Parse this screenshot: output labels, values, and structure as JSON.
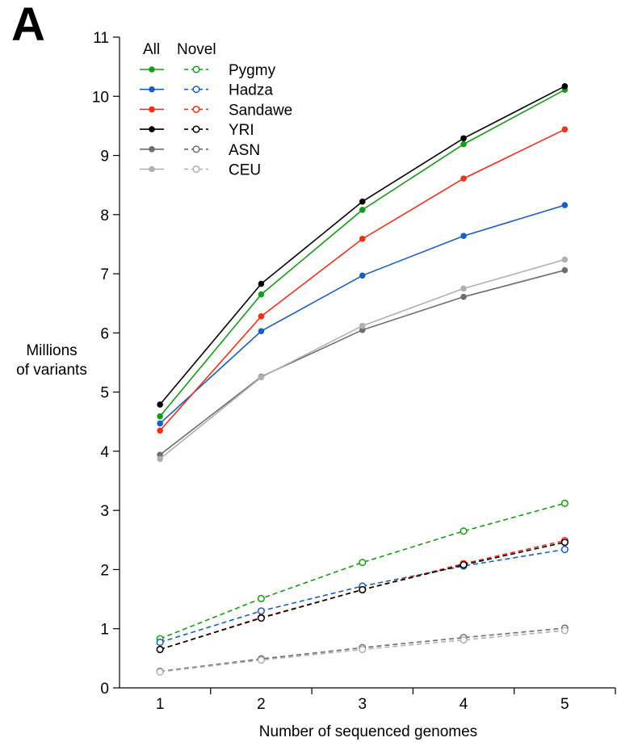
{
  "panel_label": "A",
  "chart_data": {
    "type": "line",
    "xlabel": "Number of sequenced genomes",
    "ylabel_lines": [
      "Millions",
      "of variants"
    ],
    "x": [
      1,
      2,
      3,
      4,
      5
    ],
    "xlim": [
      0.6,
      5.5
    ],
    "ylim": [
      0,
      11
    ],
    "x_ticks": [
      1,
      2,
      3,
      4,
      5
    ],
    "y_ticks": [
      0,
      1,
      2,
      3,
      4,
      5,
      6,
      7,
      8,
      9,
      10,
      11
    ],
    "grid": false,
    "legend": {
      "placement": "top-left",
      "headers": [
        "All",
        "Novel"
      ],
      "entries": [
        "Pygmy",
        "Hadza",
        "Sandawe",
        "YRI",
        "ASN",
        "CEU"
      ]
    },
    "series": [
      {
        "name": "Pygmy",
        "group": "All",
        "color": "#1a9a1a",
        "style": "solid",
        "marker": "filled",
        "values": [
          4.59,
          6.65,
          8.08,
          9.19,
          10.11
        ]
      },
      {
        "name": "Hadza",
        "group": "All",
        "color": "#1a5fbf",
        "style": "solid",
        "marker": "filled",
        "values": [
          4.47,
          6.03,
          6.97,
          7.64,
          8.16
        ]
      },
      {
        "name": "Sandawe",
        "group": "All",
        "color": "#f0301a",
        "style": "solid",
        "marker": "filled",
        "values": [
          4.35,
          6.28,
          7.59,
          8.61,
          9.44
        ]
      },
      {
        "name": "YRI",
        "group": "All",
        "color": "#000000",
        "style": "solid",
        "marker": "filled",
        "values": [
          4.79,
          6.83,
          8.22,
          9.29,
          10.17
        ]
      },
      {
        "name": "ASN",
        "group": "All",
        "color": "#6e6e6e",
        "style": "solid",
        "marker": "filled",
        "values": [
          3.94,
          5.26,
          6.05,
          6.61,
          7.06
        ]
      },
      {
        "name": "CEU",
        "group": "All",
        "color": "#b0b0b0",
        "style": "solid",
        "marker": "filled",
        "values": [
          3.87,
          5.25,
          6.12,
          6.75,
          7.24
        ]
      },
      {
        "name": "Pygmy",
        "group": "Novel",
        "color": "#1a9a1a",
        "style": "dashed",
        "marker": "open",
        "values": [
          0.83,
          1.51,
          2.12,
          2.65,
          3.12
        ]
      },
      {
        "name": "Hadza",
        "group": "Novel",
        "color": "#1a5fbf",
        "style": "dashed",
        "marker": "open",
        "values": [
          0.77,
          1.3,
          1.72,
          2.06,
          2.34
        ]
      },
      {
        "name": "Sandawe",
        "group": "Novel",
        "color": "#f0301a",
        "style": "dashed",
        "marker": "open",
        "values": [
          0.65,
          1.19,
          1.66,
          2.1,
          2.49
        ]
      },
      {
        "name": "YRI",
        "group": "Novel",
        "color": "#000000",
        "style": "dashed",
        "marker": "open",
        "values": [
          0.65,
          1.18,
          1.66,
          2.08,
          2.46
        ]
      },
      {
        "name": "ASN",
        "group": "Novel",
        "color": "#6e6e6e",
        "style": "dashed",
        "marker": "open",
        "values": [
          0.28,
          0.49,
          0.68,
          0.85,
          1.01
        ]
      },
      {
        "name": "CEU",
        "group": "Novel",
        "color": "#b0b0b0",
        "style": "dashed",
        "marker": "open",
        "values": [
          0.27,
          0.47,
          0.65,
          0.81,
          0.97
        ]
      }
    ]
  }
}
